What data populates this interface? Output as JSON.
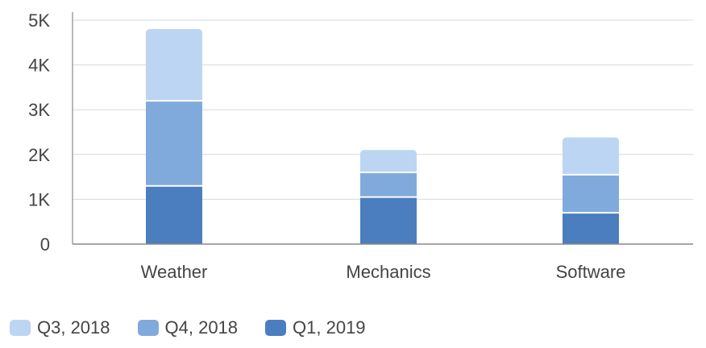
{
  "chart_data": {
    "type": "bar",
    "stacked": true,
    "categories": [
      "Weather",
      "Mechanics",
      "Software"
    ],
    "series": [
      {
        "name": "Q1, 2019",
        "color": "#4a7ebf",
        "values": [
          1300,
          1050,
          700
        ]
      },
      {
        "name": "Q4, 2018",
        "color": "#80aadc",
        "values": [
          1900,
          550,
          850
        ]
      },
      {
        "name": "Q3, 2018",
        "color": "#bcd5f2",
        "values": [
          1600,
          500,
          830
        ]
      }
    ],
    "legend_order": [
      "Q3, 2018",
      "Q4, 2018",
      "Q1, 2019"
    ],
    "y_ticks": [
      0,
      1000,
      2000,
      3000,
      4000,
      5000
    ],
    "y_tick_labels": [
      "0",
      "1K",
      "2K",
      "3K",
      "4K",
      "5K"
    ],
    "ylim": [
      0,
      5000
    ],
    "title": "",
    "xlabel": "",
    "ylabel": "",
    "grid": true,
    "legend_position": "bottom-left"
  }
}
